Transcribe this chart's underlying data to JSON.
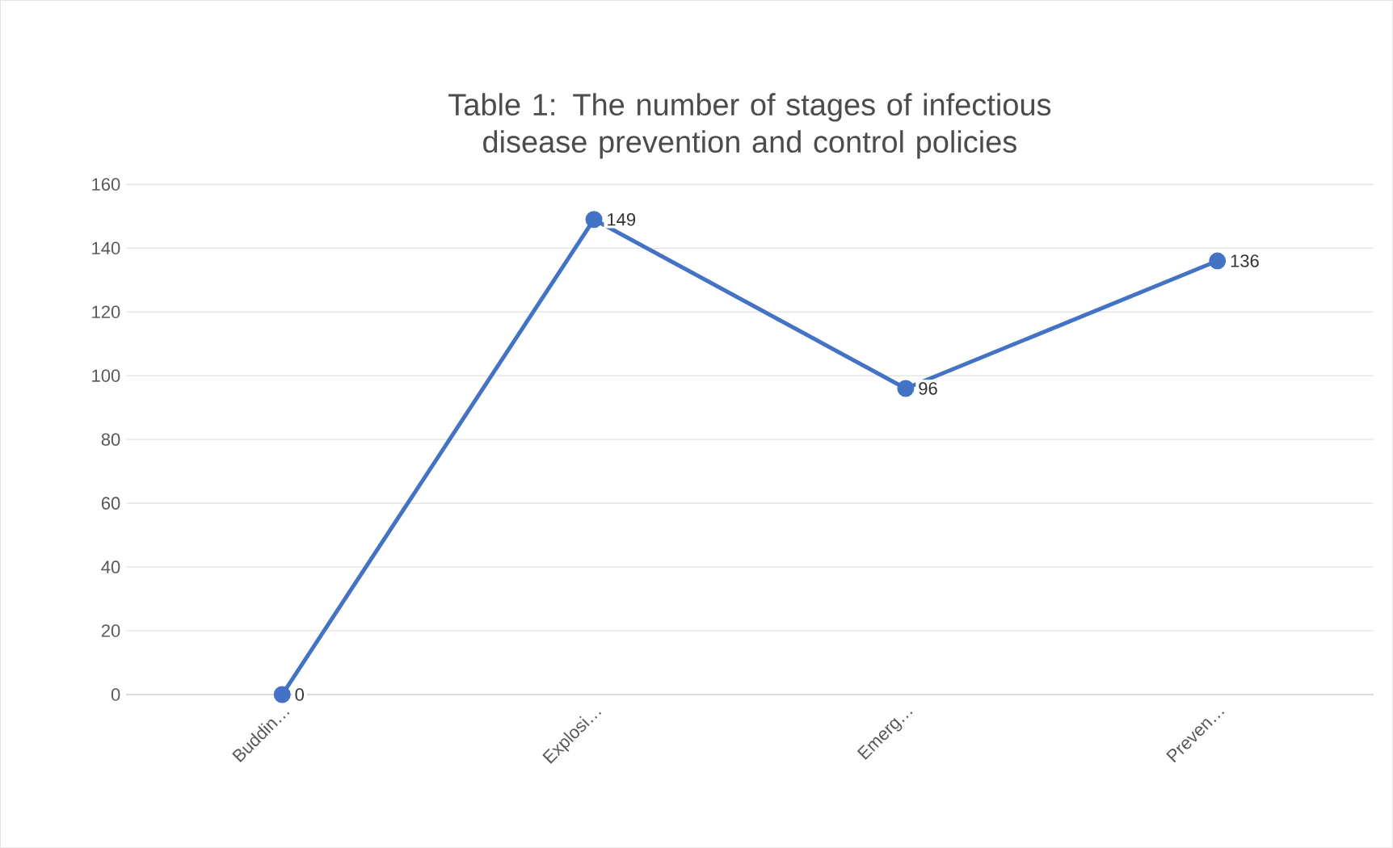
{
  "chart_data": {
    "type": "line",
    "title": "Table 1: The number of stages of infectious disease prevention and control policies",
    "categories": [
      "Buddin…",
      "Explosi…",
      "Emerg…",
      "Preven…"
    ],
    "values": [
      0,
      149,
      96,
      136
    ],
    "color": "#4472c4",
    "marker": "circle",
    "line_style": "solid",
    "ylim": [
      0,
      160
    ],
    "yticks": [
      0,
      20,
      40,
      60,
      80,
      100,
      120,
      140,
      160
    ],
    "grid": "y",
    "data_labels": true
  }
}
